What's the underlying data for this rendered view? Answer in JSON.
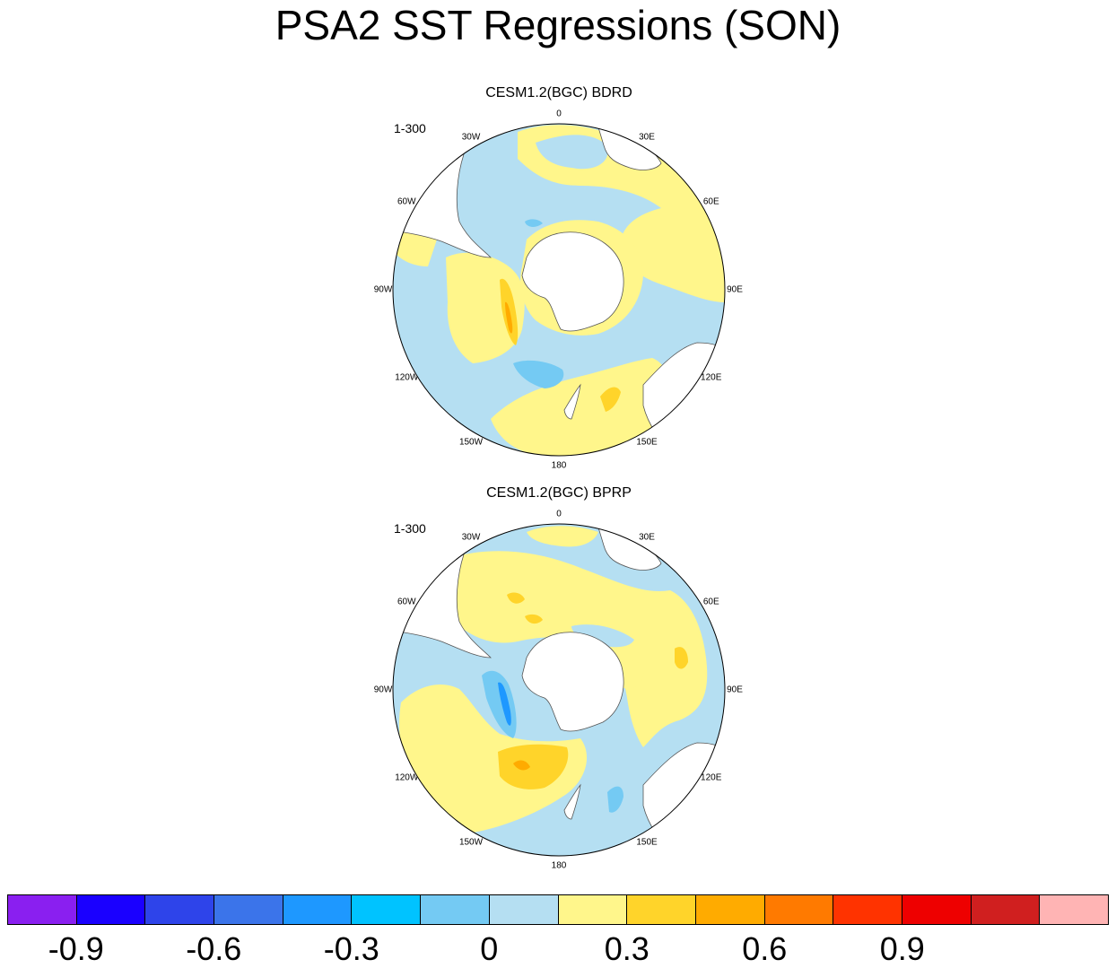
{
  "title": "PSA2 SST Regressions (SON)",
  "panels": [
    {
      "title": "CESM1.2(BGC) BDRD",
      "range_label": "1-300"
    },
    {
      "title": "CESM1.2(BGC) BPRP",
      "range_label": "1-300"
    }
  ],
  "longitude_labels": [
    "0",
    "30E",
    "60E",
    "90E",
    "120E",
    "150E",
    "180",
    "150W",
    "120W",
    "90W",
    "60W",
    "30W"
  ],
  "colorbar": {
    "colors": [
      "#8a1ff0",
      "#1a00ff",
      "#2e44ea",
      "#3b74ea",
      "#1e98ff",
      "#00c3ff",
      "#74caf3",
      "#b5dff2",
      "#fff68b",
      "#ffd42a",
      "#ffab00",
      "#ff7a00",
      "#ff3300",
      "#ee0000",
      "#d01f1f",
      "#ffb4b4"
    ],
    "tick_labels": [
      "-0.9",
      "-0.6",
      "-0.3",
      "0",
      "0.3",
      "0.6",
      "0.9"
    ]
  },
  "palette": {
    "land": "#ffffff",
    "ocean_neg": "#b5dff2",
    "ocean_pos": "#fff68b",
    "neg_strong": "#74caf3",
    "pos_strong": "#ffd42a",
    "pos_stronger": "#ffab00",
    "neg_stronger": "#1e98ff",
    "coast": "#555555"
  }
}
